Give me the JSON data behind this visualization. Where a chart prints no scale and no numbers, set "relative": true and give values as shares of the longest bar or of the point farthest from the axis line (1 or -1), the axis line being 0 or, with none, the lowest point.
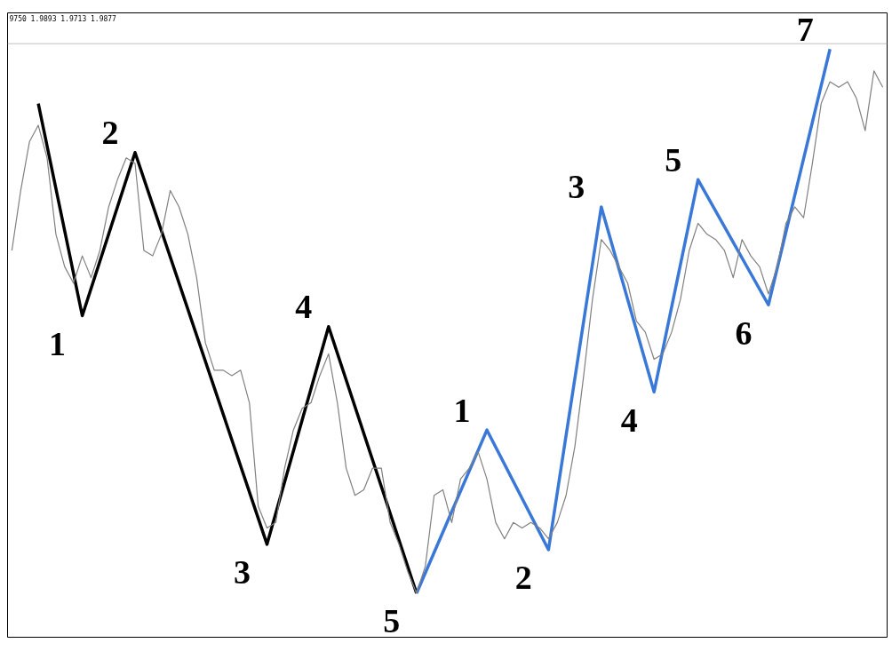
{
  "chart_data": {
    "type": "line",
    "relative": true,
    "tick_labels": false,
    "line_style": "solid",
    "marker": "none",
    "categories": [
      null,
      null,
      null,
      null,
      null,
      null,
      null,
      null,
      null,
      null,
      null,
      null,
      null,
      null,
      null,
      null,
      null,
      null,
      null,
      null,
      null,
      null,
      null,
      null,
      null,
      null,
      null,
      null,
      null,
      null,
      null,
      null,
      null,
      null,
      null,
      null,
      null,
      null,
      null,
      null,
      null,
      null,
      null,
      null,
      null,
      null,
      null,
      null,
      null,
      null,
      null,
      null,
      null,
      null,
      null,
      null,
      null,
      null,
      null,
      null,
      null,
      null,
      null,
      null,
      null,
      null,
      null,
      null,
      null,
      null,
      null,
      null,
      null,
      null,
      null,
      null,
      null,
      null,
      null,
      null,
      null,
      null,
      null,
      null,
      null,
      null,
      null,
      null,
      null,
      null,
      null,
      null,
      null,
      null,
      null,
      null,
      null,
      null,
      null,
      null
    ],
    "series": [
      {
        "color": "#808080",
        "values": [
          0.63,
          0.74,
          0.83,
          0.86,
          0.8,
          0.66,
          0.6,
          0.57,
          0.62,
          0.58,
          0.63,
          0.71,
          0.76,
          0.8,
          0.79,
          0.63,
          0.62,
          0.66,
          0.74,
          0.71,
          0.66,
          0.58,
          0.46,
          0.41,
          0.41,
          0.4,
          0.41,
          0.35,
          0.16,
          0.12,
          0.13,
          0.23,
          0.3,
          0.34,
          0.35,
          0.4,
          0.44,
          0.35,
          0.23,
          0.18,
          0.19,
          0.23,
          0.23,
          0.13,
          0.09,
          0.04,
          0,
          0.05,
          0.18,
          0.19,
          0.13,
          0.21,
          0.23,
          0.26,
          0.21,
          0.13,
          0.1,
          0.13,
          0.12,
          0.13,
          0.12,
          0.1,
          0.13,
          0.18,
          0.27,
          0.4,
          0.54,
          0.65,
          0.63,
          0.6,
          0.57,
          0.5,
          0.48,
          0.43,
          0.44,
          0.48,
          0.54,
          0.63,
          0.68,
          0.66,
          0.65,
          0.63,
          0.58,
          0.65,
          0.62,
          0.6,
          0.55,
          0.6,
          0.68,
          0.71,
          0.69,
          0.79,
          0.9,
          0.94,
          0.93,
          0.94,
          0.91,
          0.85,
          0.96,
          0.93
        ]
      },
      {
        "color": "#000000",
        "values": [
          null,
          null,
          null,
          0.9,
          null,
          null,
          null,
          null,
          0.51,
          null,
          null,
          null,
          null,
          null,
          0.81,
          null,
          null,
          null,
          null,
          null,
          null,
          null,
          null,
          null,
          null,
          null,
          null,
          null,
          null,
          0.09,
          null,
          null,
          null,
          null,
          null,
          null,
          0.49,
          null,
          null,
          null,
          null,
          null,
          null,
          null,
          null,
          null,
          0,
          null,
          null,
          null,
          null,
          null,
          null,
          null,
          null,
          null,
          null,
          null,
          null,
          null,
          null,
          null,
          null,
          null,
          null,
          null,
          null,
          null,
          null,
          null,
          null,
          null,
          null,
          null,
          null,
          null,
          null,
          null,
          null,
          null,
          null,
          null,
          null,
          null,
          null,
          null,
          null,
          null,
          null,
          null,
          null,
          null,
          null,
          null,
          null,
          null,
          null,
          null,
          null,
          null
        ]
      },
      {
        "color": "#3a78d8",
        "values": [
          null,
          null,
          null,
          null,
          null,
          null,
          null,
          null,
          null,
          null,
          null,
          null,
          null,
          null,
          null,
          null,
          null,
          null,
          null,
          null,
          null,
          null,
          null,
          null,
          null,
          null,
          null,
          null,
          null,
          null,
          null,
          null,
          null,
          null,
          null,
          null,
          null,
          null,
          null,
          null,
          null,
          null,
          null,
          null,
          null,
          null,
          0,
          null,
          null,
          null,
          null,
          null,
          null,
          null,
          0.3,
          null,
          null,
          null,
          null,
          null,
          null,
          0.08,
          null,
          null,
          null,
          null,
          null,
          0.71,
          null,
          null,
          null,
          null,
          null,
          0.37,
          null,
          null,
          null,
          null,
          0.76,
          null,
          null,
          null,
          null,
          null,
          null,
          null,
          0.53,
          null,
          null,
          null,
          null,
          null,
          null,
          1,
          null,
          null,
          null,
          null,
          null,
          null
        ]
      }
    ],
    "ref_lines": [
      {
        "axis": "y",
        "value": 1.01,
        "color": "#c0c0c0"
      }
    ],
    "annotations": [
      "9750 1.9893 1.9713 1.9877",
      "1",
      "2",
      "3",
      "4",
      "5",
      "1",
      "2",
      "3",
      "4",
      "5",
      "6",
      "7"
    ]
  }
}
